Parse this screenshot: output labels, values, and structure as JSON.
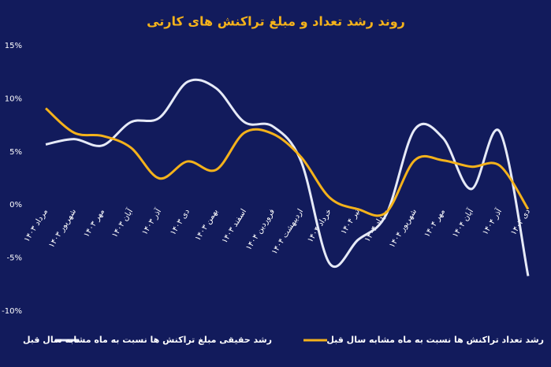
{
  "chart_data": {
    "type": "line",
    "title": "روند رشد تعداد و مبلغ تراکنش های کارتی",
    "categories": [
      "مرداد ۱۴۰۳",
      "شهریور ۱۴۰۳",
      "مهر ۱۴۰۳",
      "آبان ۱۴۰۳",
      "آذر ۱۴۰۳",
      "دی ۱۴۰۳",
      "بهمن ۱۴۰۳",
      "اسفند ۱۴۰۳",
      "فروردین ۱۴۰۴",
      "اردیبهشت ۱۴۰۴",
      "خرداد ۱۴۰۴",
      "تیر ۱۴۰۴",
      "مرداد ۱۴۰۴",
      "شهریور ۱۴۰۴",
      "مهر ۱۴۰۴",
      "آبان ۱۴۰۴",
      "آذر ۱۴۰۴",
      "دی ۱۴۰۴"
    ],
    "series": [
      {
        "name": "رشد حقیقی مبلغ تراکنش ها نسبت به ماه مشابه سال قبل",
        "color": "#e6eaf7",
        "values": [
          5.7,
          6.2,
          5.6,
          7.8,
          8.2,
          11.6,
          11.0,
          7.8,
          7.4,
          4.1,
          -5.5,
          -3.3,
          -0.9,
          7.1,
          6.3,
          1.5,
          6.9,
          -6.7
        ]
      },
      {
        "name": "رشد تعداد تراکنش ها نسبت به ماه مشابه سال قبل",
        "color": "#f4b21b",
        "values": [
          9.1,
          6.8,
          6.5,
          5.4,
          2.5,
          4.1,
          3.3,
          6.8,
          6.7,
          4.5,
          0.7,
          -0.4,
          -0.7,
          4.2,
          4.2,
          3.6,
          3.7,
          -0.4
        ]
      }
    ],
    "ylim": [
      -10,
      15
    ],
    "yticks": [
      {
        "value": -10,
        "label": "-10%"
      },
      {
        "value": -5,
        "label": "-5%"
      },
      {
        "value": 0,
        "label": "0%"
      },
      {
        "value": 5,
        "label": "5%"
      },
      {
        "value": 10,
        "label": "10%"
      },
      {
        "value": 15,
        "label": "15%"
      }
    ]
  }
}
